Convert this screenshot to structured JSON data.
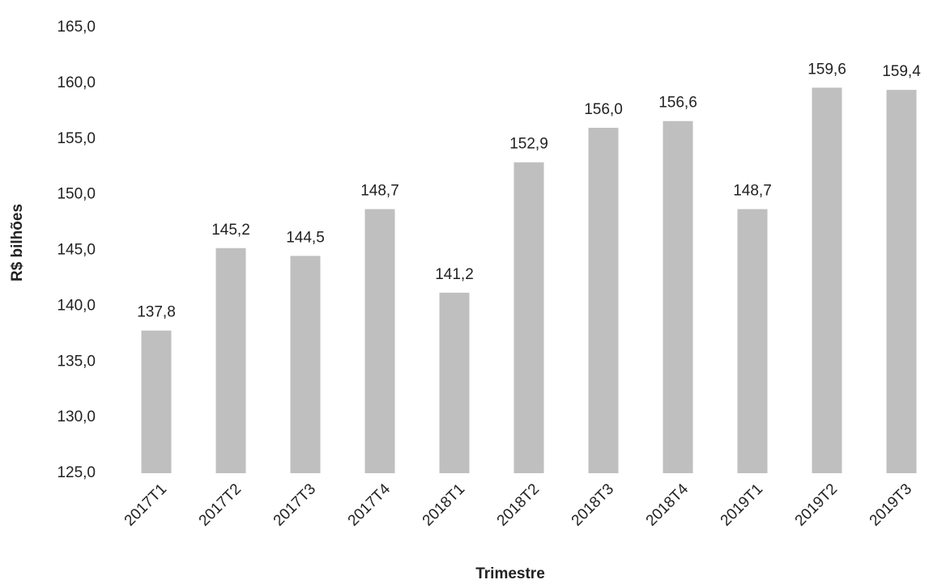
{
  "chart_data": {
    "type": "bar",
    "x_label": "Trimestre",
    "y_label": "R$ bilhões",
    "categories": [
      "2017T1",
      "2017T2",
      "2017T3",
      "2017T4",
      "2018T1",
      "2018T2",
      "2018T3",
      "2018T4",
      "2019T1",
      "2019T2",
      "2019T3"
    ],
    "values": [
      137.8,
      145.2,
      144.5,
      148.7,
      141.2,
      152.9,
      156.0,
      156.6,
      148.7,
      159.6,
      159.4
    ],
    "value_labels": [
      "137,8",
      "145,2",
      "144,5",
      "148,7",
      "141,2",
      "152,9",
      "156,0",
      "156,6",
      "148,7",
      "159,6",
      "159,4"
    ],
    "color": "#bfbfbf",
    "ylim": [
      125,
      165
    ],
    "yticks": [
      {
        "value": 125,
        "label": "125,0"
      },
      {
        "value": 130,
        "label": "130,0"
      },
      {
        "value": 135,
        "label": "135,0"
      },
      {
        "value": 140,
        "label": "140,0"
      },
      {
        "value": 145,
        "label": "145,0"
      },
      {
        "value": 150,
        "label": "150,0"
      },
      {
        "value": 155,
        "label": "155,0"
      },
      {
        "value": 160,
        "label": "160,0"
      },
      {
        "value": 165,
        "label": "165,0"
      }
    ],
    "grid": false
  }
}
